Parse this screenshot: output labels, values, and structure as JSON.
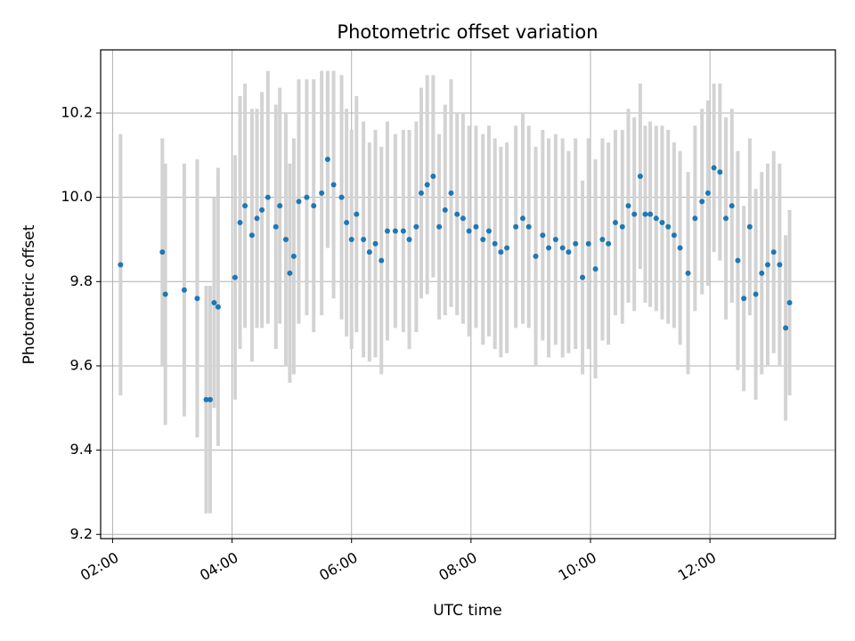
{
  "chart_data": {
    "type": "scatter",
    "title": "Photometric offset variation",
    "xlabel": "UTC time",
    "ylabel": "Photometric offset",
    "xlim": [
      "01:48",
      "14:06"
    ],
    "ylim": [
      9.19,
      10.35
    ],
    "x_ticks": [
      "02:00",
      "04:00",
      "06:00",
      "08:00",
      "10:00",
      "12:00"
    ],
    "y_ticks": [
      "9.2",
      "9.4",
      "9.6",
      "9.8",
      "10.0",
      "10.2"
    ],
    "grid": true,
    "colors": {
      "marker": "#1f77b4",
      "error_bar": "#d3d3d3",
      "grid": "#b0b0b0",
      "axes": "#000000"
    },
    "series": [
      {
        "x": [
          "02:08",
          "02:50",
          "02:53",
          "03:12",
          "03:25",
          "03:34",
          "03:38",
          "03:42",
          "03:46",
          "04:03",
          "04:08",
          "04:13",
          "04:20",
          "04:25",
          "04:30",
          "04:36",
          "04:44",
          "04:48",
          "04:54",
          "04:58",
          "05:02",
          "05:07",
          "05:15",
          "05:22",
          "05:30",
          "05:36",
          "05:42",
          "05:50",
          "05:55",
          "06:00",
          "06:05",
          "06:12",
          "06:18",
          "06:24",
          "06:30",
          "06:36",
          "06:44",
          "06:52",
          "06:58",
          "07:05",
          "07:10",
          "07:16",
          "07:22",
          "07:28",
          "07:34",
          "07:40",
          "07:46",
          "07:52",
          "07:58",
          "08:05",
          "08:12",
          "08:18",
          "08:24",
          "08:30",
          "08:36",
          "08:45",
          "08:52",
          "08:58",
          "09:05",
          "09:12",
          "09:18",
          "09:25",
          "09:32",
          "09:38",
          "09:45",
          "09:52",
          "09:58",
          "10:05",
          "10:12",
          "10:18",
          "10:25",
          "10:32",
          "10:38",
          "10:44",
          "10:50",
          "10:55",
          "11:00",
          "11:06",
          "11:12",
          "11:18",
          "11:24",
          "11:30",
          "11:38",
          "11:45",
          "11:52",
          "11:58",
          "12:04",
          "12:10",
          "12:16",
          "12:22",
          "12:28",
          "12:34",
          "12:40",
          "12:46",
          "12:52",
          "12:58",
          "13:04",
          "13:10",
          "13:16",
          "13:20"
        ],
        "y": [
          9.84,
          9.87,
          9.77,
          9.78,
          9.76,
          9.52,
          9.52,
          9.75,
          9.74,
          9.81,
          9.94,
          9.98,
          9.91,
          9.95,
          9.97,
          10.0,
          9.93,
          9.98,
          9.9,
          9.82,
          9.86,
          9.99,
          10.0,
          9.98,
          10.01,
          10.09,
          10.03,
          10.0,
          9.94,
          9.9,
          9.96,
          9.9,
          9.87,
          9.89,
          9.85,
          9.92,
          9.92,
          9.92,
          9.9,
          9.93,
          10.01,
          10.03,
          10.05,
          9.93,
          9.97,
          10.01,
          9.96,
          9.95,
          9.92,
          9.93,
          9.9,
          9.92,
          9.89,
          9.87,
          9.88,
          9.93,
          9.95,
          9.93,
          9.86,
          9.91,
          9.88,
          9.9,
          9.88,
          9.87,
          9.89,
          9.81,
          9.89,
          9.83,
          9.9,
          9.89,
          9.94,
          9.93,
          9.98,
          9.96,
          10.05,
          9.96,
          9.96,
          9.95,
          9.94,
          9.93,
          9.91,
          9.88,
          9.82,
          9.95,
          9.99,
          10.01,
          10.07,
          10.06,
          9.95,
          9.98,
          9.85,
          9.76,
          9.93,
          9.77,
          9.82,
          9.84,
          9.87,
          9.84,
          9.69,
          9.75
        ],
        "err": [
          0.31,
          0.27,
          0.31,
          0.3,
          0.33,
          0.27,
          0.27,
          0.25,
          0.33,
          0.29,
          0.3,
          0.29,
          0.3,
          0.26,
          0.28,
          0.3,
          0.29,
          0.28,
          0.3,
          0.26,
          0.28,
          0.29,
          0.28,
          0.3,
          0.29,
          0.21,
          0.27,
          0.29,
          0.27,
          0.26,
          0.28,
          0.28,
          0.26,
          0.27,
          0.27,
          0.26,
          0.23,
          0.24,
          0.26,
          0.25,
          0.25,
          0.26,
          0.24,
          0.22,
          0.25,
          0.27,
          0.24,
          0.25,
          0.25,
          0.24,
          0.25,
          0.25,
          0.25,
          0.25,
          0.25,
          0.24,
          0.25,
          0.24,
          0.26,
          0.25,
          0.26,
          0.25,
          0.26,
          0.24,
          0.25,
          0.23,
          0.25,
          0.26,
          0.24,
          0.24,
          0.22,
          0.23,
          0.23,
          0.23,
          0.22,
          0.21,
          0.22,
          0.22,
          0.23,
          0.23,
          0.22,
          0.23,
          0.24,
          0.22,
          0.22,
          0.22,
          0.2,
          0.21,
          0.24,
          0.23,
          0.26,
          0.22,
          0.21,
          0.25,
          0.24,
          0.24,
          0.24,
          0.24,
          0.22,
          0.22
        ]
      }
    ]
  }
}
